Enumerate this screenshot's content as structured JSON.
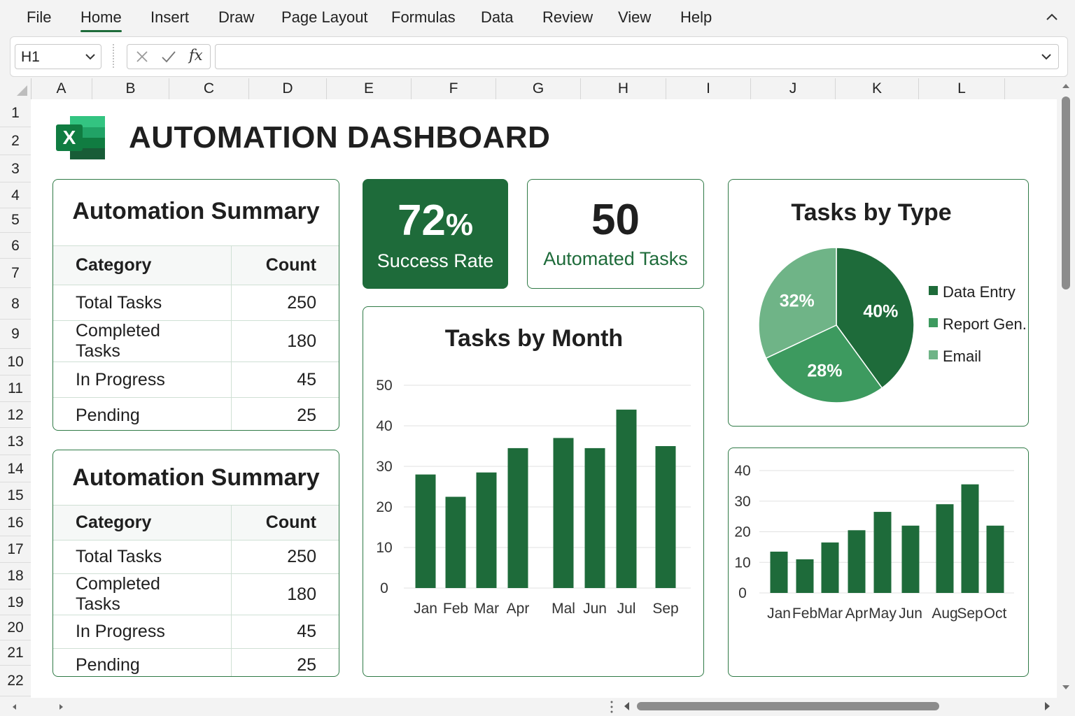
{
  "menu": {
    "items": [
      "File",
      "Home",
      "Insert",
      "Draw",
      "Page Layout",
      "Formulas",
      "Data",
      "Review",
      "View",
      "Help"
    ],
    "active": "Home"
  },
  "formula_bar": {
    "name_box": "H1",
    "fx": "fx",
    "formula": ""
  },
  "columns": [
    "A",
    "B",
    "C",
    "D",
    "E",
    "F",
    "G",
    "H",
    "I",
    "J",
    "K",
    "L"
  ],
  "rows": [
    "1",
    "2",
    "3",
    "4",
    "5",
    "6",
    "7",
    "8",
    "9",
    "10",
    "11",
    "12",
    "13",
    "14",
    "15",
    "16",
    "17",
    "18",
    "19",
    "20",
    "21",
    "22"
  ],
  "dashboard": {
    "title": "AUTOMATION DASHBOARD",
    "logo_letter": "X",
    "summary_tables": [
      {
        "title": "Automation Summary",
        "headers": [
          "Category",
          "Count"
        ],
        "rows": [
          [
            "Total Tasks",
            "250"
          ],
          [
            "Completed Tasks",
            "180"
          ],
          [
            "In Progress",
            "45"
          ],
          [
            "Pending",
            "25"
          ]
        ]
      },
      {
        "title": "Automation Summary",
        "headers": [
          "Category",
          "Count"
        ],
        "rows": [
          [
            "Total Tasks",
            "250"
          ],
          [
            "Completed Tasks",
            "180"
          ],
          [
            "In Progress",
            "45"
          ],
          [
            "Pending",
            "25"
          ]
        ]
      }
    ],
    "kpis": [
      {
        "value": "72",
        "unit": "%",
        "label": "Success Rate"
      },
      {
        "value": "50",
        "unit": "",
        "label": "Automated Tasks"
      }
    ]
  },
  "colors": {
    "dark_green": "#1e6b3a",
    "mid_green": "#3d9a5f",
    "light_green": "#6fb487",
    "border_green": "#2f7a46"
  },
  "chart_data": [
    {
      "type": "bar",
      "title": "Tasks by Month",
      "categories": [
        "Jan",
        "Feb",
        "Mar",
        "Apr",
        "Mal",
        "Jun",
        "Jul",
        "Sep"
      ],
      "values": [
        28,
        22.5,
        28.5,
        34.5,
        37,
        34.5,
        44,
        35
      ],
      "yticks": [
        0,
        10,
        20,
        30,
        40,
        50
      ],
      "ylim": [
        0,
        50
      ],
      "grid": true
    },
    {
      "type": "pie",
      "title": "Tasks by Type",
      "slices": [
        {
          "name": "Data Entry",
          "value": 40,
          "label": "40%"
        },
        {
          "name": "Report Gen.",
          "value": 28,
          "label": "28%"
        },
        {
          "name": "Email",
          "value": 32,
          "label": "32%"
        }
      ],
      "legend": "right"
    },
    {
      "type": "bar",
      "title": "",
      "categories": [
        "Jan",
        "Feb",
        "Mar",
        "Apr",
        "May",
        "Jun",
        "Aug",
        "Sep",
        "Oct"
      ],
      "values": [
        13.5,
        11,
        16.5,
        20.5,
        26.5,
        22,
        29,
        35.5,
        22
      ],
      "yticks": [
        0,
        10,
        20,
        30,
        40
      ],
      "ylim": [
        0,
        40
      ],
      "grid": true
    }
  ]
}
